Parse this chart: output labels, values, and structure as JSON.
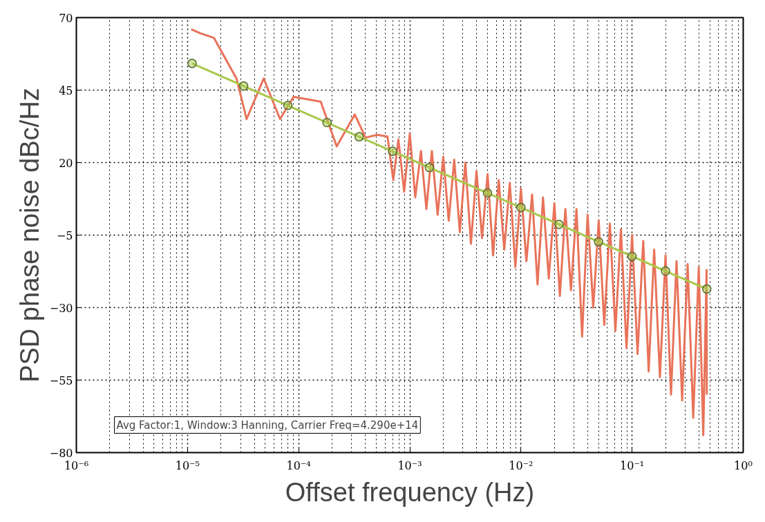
{
  "chart_data": {
    "type": "line",
    "xlabel": "Offset frequency (Hz)",
    "ylabel": "PSD phase noise dBc/Hz",
    "log": "x",
    "grid": true,
    "xlim": [
      1e-06,
      1
    ],
    "ylim": [
      -80,
      70
    ],
    "xticks": [
      {
        "value": 1e-06,
        "label": "10⁻⁶"
      },
      {
        "value": 1e-05,
        "label": "10⁻⁵"
      },
      {
        "value": 0.0001,
        "label": "10⁻⁴"
      },
      {
        "value": 0.001,
        "label": "10⁻³"
      },
      {
        "value": 0.01,
        "label": "10⁻²"
      },
      {
        "value": 0.1,
        "label": "10⁻¹"
      },
      {
        "value": 1,
        "label": "10⁰"
      }
    ],
    "yticks": [
      -80,
      -55,
      -30,
      -5,
      20,
      45,
      70
    ],
    "annotations": [
      "Avg Factor:1, Window:3 Hanning, Carrier Freq=4.290e+14"
    ],
    "series": [
      {
        "color": "#e8735a",
        "marker": "none",
        "x": [
          1.08e-05,
          1.3e-05,
          1.73e-05,
          2.76e-05,
          3.4e-05,
          4.85e-05,
          6.8e-05,
          9e-05,
          0.000158,
          0.00022,
          0.00032,
          0.0004,
          0.00051,
          0.00063,
          0.00071,
          0.00079,
          0.00089,
          0.001,
          0.00112,
          0.00126,
          0.00141,
          0.00158,
          0.00178,
          0.002,
          0.00224,
          0.00251,
          0.00282,
          0.00316,
          0.00355,
          0.00398,
          0.00447,
          0.00501,
          0.00562,
          0.00631,
          0.00708,
          0.00794,
          0.00891,
          0.01,
          0.0112,
          0.0126,
          0.0141,
          0.0158,
          0.0178,
          0.02,
          0.0224,
          0.0251,
          0.0282,
          0.0316,
          0.0355,
          0.0398,
          0.0447,
          0.0501,
          0.0562,
          0.0631,
          0.0708,
          0.0794,
          0.0891,
          0.1,
          0.112,
          0.126,
          0.141,
          0.158,
          0.178,
          0.2,
          0.224,
          0.251,
          0.282,
          0.316,
          0.355,
          0.398,
          0.437,
          0.468,
          0.47
        ],
        "values": [
          66,
          64.6,
          63,
          49,
          35,
          49,
          35,
          42.7,
          41,
          25.6,
          36.6,
          28.6,
          29.6,
          29,
          14,
          28,
          10,
          30,
          8,
          24,
          4,
          24,
          2,
          22,
          0,
          21,
          -4,
          20,
          -8,
          17,
          -6,
          16,
          -12,
          14,
          -10,
          13,
          -16,
          11,
          -14,
          9,
          -22,
          8,
          -20,
          6,
          -26,
          4,
          -24,
          4,
          -40,
          2,
          -30,
          0,
          -36,
          -1,
          -38,
          -3,
          -44,
          -5,
          -46,
          -7,
          -52,
          -10,
          -54,
          -12,
          -60,
          -14,
          -62,
          -15,
          -68,
          -16,
          -74,
          -17,
          -60
        ]
      },
      {
        "color": "#a8c84a",
        "marker": "circle",
        "x": [
          1.1e-05,
          3.2e-05,
          8e-05,
          0.00018,
          0.00035,
          0.0007,
          0.0015,
          0.005,
          0.01,
          0.022,
          0.05,
          0.1,
          0.2,
          0.47
        ],
        "values": [
          54.2,
          46.4,
          39.7,
          33.8,
          28.9,
          23.9,
          18.3,
          9.5,
          4.5,
          -1.3,
          -7.3,
          -12.3,
          -17.4,
          -23.6
        ]
      }
    ]
  }
}
